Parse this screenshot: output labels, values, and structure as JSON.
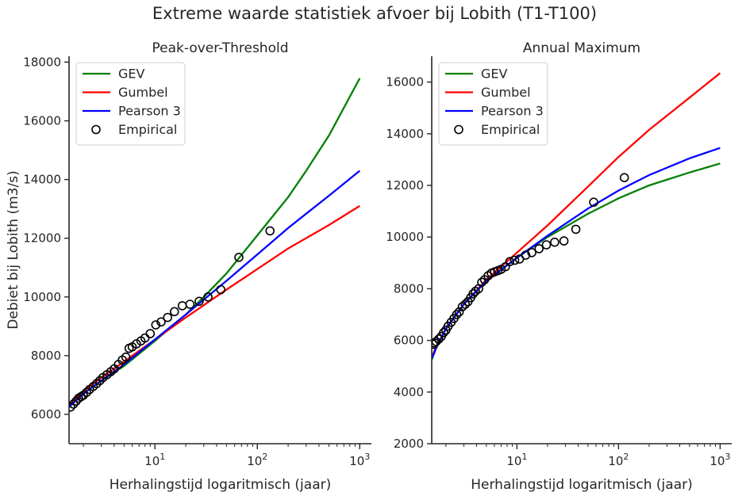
{
  "suptitle": "Extreme waarde statistiek afvoer bij Lobith (T1-T100)",
  "chart_data": [
    {
      "type": "line",
      "title": "Peak-over-Threshold",
      "xlabel": "Herhalingstijd logaritmisch (jaar)",
      "ylabel": "Debiet bij Lobith (m3/s)",
      "xscale": "log",
      "xlim": [
        1.45,
        1300
      ],
      "ylim": [
        5000,
        18200
      ],
      "xticks": [
        {
          "base": "10",
          "exp": "1",
          "value": 10
        },
        {
          "base": "10",
          "exp": "2",
          "value": 100
        },
        {
          "base": "10",
          "exp": "3",
          "value": 1000
        }
      ],
      "yticks": [
        6000,
        8000,
        10000,
        12000,
        14000,
        16000,
        18000
      ],
      "grid": false,
      "legend_position": "top-left",
      "series": [
        {
          "name": "GEV",
          "color": "#008000",
          "x": [
            1.45,
            2,
            3,
            5,
            10,
            20,
            30,
            50,
            100,
            200,
            300,
            500,
            1000
          ],
          "y": [
            6250,
            6700,
            7150,
            7650,
            8500,
            9400,
            10000,
            10800,
            12100,
            13400,
            14300,
            15500,
            17450
          ]
        },
        {
          "name": "Gumbel",
          "color": "#ff0000",
          "x": [
            1.45,
            2,
            3,
            5,
            10,
            20,
            50,
            100,
            200,
            500,
            1000
          ],
          "y": [
            6300,
            6800,
            7250,
            7800,
            8550,
            9300,
            10250,
            10950,
            11650,
            12450,
            13100
          ]
        },
        {
          "name": "Pearson 3",
          "color": "#0000ff",
          "x": [
            1.45,
            2,
            3,
            5,
            10,
            20,
            50,
            100,
            200,
            500,
            1000
          ],
          "y": [
            6250,
            6700,
            7150,
            7700,
            8550,
            9400,
            10550,
            11450,
            12350,
            13450,
            14300
          ]
        }
      ],
      "empirical": {
        "name": "Empirical",
        "x": [
          1.5,
          1.6,
          1.7,
          1.8,
          1.9,
          2.0,
          2.15,
          2.3,
          2.5,
          2.7,
          2.9,
          3.1,
          3.4,
          3.7,
          4.0,
          4.4,
          4.8,
          5.2,
          5.6,
          6.0,
          6.6,
          7.3,
          8.0,
          9.0,
          10.2,
          11.5,
          13.3,
          15.5,
          18.5,
          22,
          27,
          33,
          44,
          66,
          133
        ],
        "y": [
          6250,
          6350,
          6450,
          6550,
          6600,
          6650,
          6750,
          6850,
          6950,
          7050,
          7150,
          7250,
          7350,
          7450,
          7550,
          7700,
          7850,
          7950,
          8250,
          8300,
          8400,
          8500,
          8600,
          8750,
          9050,
          9150,
          9300,
          9500,
          9700,
          9750,
          9850,
          10000,
          10250,
          11350,
          12250
        ]
      }
    },
    {
      "type": "line",
      "title": "Annual Maximum",
      "xlabel": "Herhalingstijd logaritmisch (jaar)",
      "ylabel": "",
      "xscale": "log",
      "xlim": [
        1.45,
        1300
      ],
      "ylim": [
        2000,
        17000
      ],
      "xticks": [
        {
          "base": "10",
          "exp": "1",
          "value": 10
        },
        {
          "base": "10",
          "exp": "2",
          "value": 100
        },
        {
          "base": "10",
          "exp": "3",
          "value": 1000
        }
      ],
      "yticks": [
        2000,
        4000,
        6000,
        8000,
        10000,
        12000,
        14000,
        16000
      ],
      "grid": false,
      "legend_position": "top-left",
      "series": [
        {
          "name": "GEV",
          "color": "#008000",
          "x": [
            1.45,
            1.6,
            2,
            3,
            5,
            10,
            20,
            50,
            100,
            200,
            500,
            1000
          ],
          "y": [
            5250,
            5700,
            6450,
            7400,
            8300,
            9200,
            10000,
            10900,
            11500,
            12000,
            12500,
            12850
          ]
        },
        {
          "name": "Gumbel",
          "color": "#ff0000",
          "x": [
            1.45,
            1.6,
            2,
            3,
            5,
            10,
            20,
            50,
            100,
            200,
            500,
            1000
          ],
          "y": [
            5350,
            5750,
            6450,
            7400,
            8350,
            9400,
            10450,
            11950,
            13100,
            14150,
            15400,
            16350
          ]
        },
        {
          "name": "Pearson 3",
          "color": "#0000ff",
          "x": [
            1.45,
            1.6,
            2,
            3,
            5,
            10,
            20,
            50,
            100,
            200,
            500,
            1000
          ],
          "y": [
            5300,
            5700,
            6450,
            7400,
            8300,
            9200,
            10050,
            11100,
            11800,
            12400,
            13050,
            13450
          ]
        }
      ],
      "empirical": {
        "name": "Empirical",
        "x": [
          1.5,
          1.55,
          1.6,
          1.7,
          1.8,
          1.9,
          2.0,
          2.1,
          2.25,
          2.4,
          2.55,
          2.7,
          2.9,
          3.1,
          3.3,
          3.5,
          3.7,
          3.9,
          4.2,
          4.5,
          4.8,
          5.2,
          5.6,
          6.0,
          6.5,
          7.0,
          7.7,
          8.5,
          9.5,
          10.6,
          12.2,
          14.0,
          16.5,
          19.5,
          23.5,
          29,
          38,
          57,
          114
        ],
        "y": [
          5850,
          5900,
          5950,
          6050,
          6150,
          6300,
          6400,
          6550,
          6700,
          6850,
          7000,
          7100,
          7300,
          7400,
          7500,
          7650,
          7800,
          7900,
          8000,
          8250,
          8350,
          8500,
          8600,
          8650,
          8700,
          8750,
          8850,
          9050,
          9100,
          9150,
          9300,
          9400,
          9550,
          9700,
          9800,
          9850,
          10300,
          11350,
          12300
        ]
      }
    }
  ]
}
